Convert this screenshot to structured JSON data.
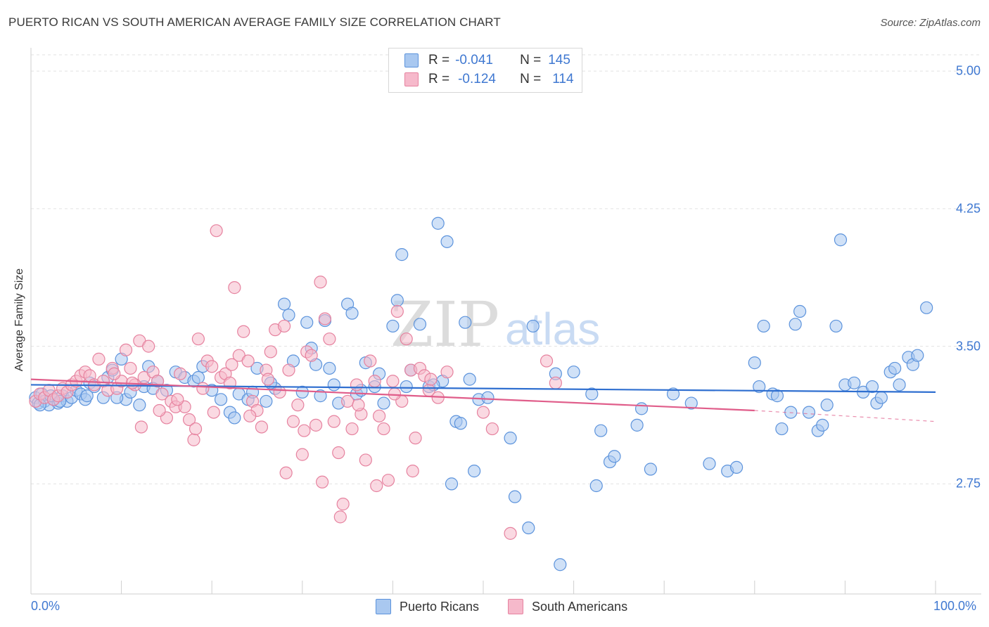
{
  "header": {
    "title": "PUERTO RICAN VS SOUTH AMERICAN AVERAGE FAMILY SIZE CORRELATION CHART",
    "source": "Source: ZipAtlas.com"
  },
  "watermark": {
    "part1": "ZIP",
    "part2": "atlas"
  },
  "colors": {
    "blue_fill": "#a9c8f0",
    "blue_stroke": "#5c93dc",
    "blue_line": "#2f6fd0",
    "pink_fill": "#f6b9cb",
    "pink_stroke": "#e6829f",
    "pink_line": "#e05d8a",
    "accent_text": "#3f78d1"
  },
  "legend": {
    "rows": [
      {
        "r_label": "R =",
        "r_value": "-0.041",
        "n_label": "N =",
        "n_value": "145"
      },
      {
        "r_label": "R =",
        "r_value": "-0.124",
        "n_label": "N =",
        "n_value": "114"
      }
    ]
  },
  "chart_data": {
    "type": "scatter",
    "title": "PUERTO RICAN VS SOUTH AMERICAN AVERAGE FAMILY SIZE CORRELATION CHART",
    "xlabel": "",
    "ylabel": "Average Family Size",
    "xlim": [
      0,
      100
    ],
    "ylim": [
      2.15,
      5.1
    ],
    "x_tick_labels": [
      "0.0%",
      "100.0%"
    ],
    "y_ticks": [
      2.75,
      3.5,
      4.25,
      5.0
    ],
    "y_tick_labels": [
      "2.75",
      "3.50",
      "4.25",
      "5.00"
    ],
    "grid": "horizontal dashed",
    "legend_position": "top-center",
    "series": [
      {
        "name": "Puerto Ricans",
        "r": -0.041,
        "n": 145,
        "trend": {
          "x": [
            0,
            100
          ],
          "y": [
            3.29,
            3.25
          ]
        },
        "points": [
          [
            0.5,
            3.22
          ],
          [
            0.8,
            3.19
          ],
          [
            1.2,
            3.24
          ],
          [
            1.5,
            3.2
          ],
          [
            2,
            3.18
          ],
          [
            2.5,
            3.21
          ],
          [
            3,
            3.19
          ],
          [
            3.5,
            3.23
          ],
          [
            4,
            3.2
          ],
          [
            4.5,
            3.22
          ],
          [
            5,
            3.26
          ],
          [
            5.5,
            3.24
          ],
          [
            6,
            3.21
          ],
          [
            6.5,
            3.3
          ],
          [
            7,
            3.28
          ],
          [
            8,
            3.22
          ],
          [
            8.5,
            3.33
          ],
          [
            9,
            3.37
          ],
          [
            10,
            3.43
          ],
          [
            10.5,
            3.21
          ],
          [
            11,
            3.25
          ],
          [
            12,
            3.18
          ],
          [
            12.5,
            3.28
          ],
          [
            13,
            3.39
          ],
          [
            14,
            3.31
          ],
          [
            15,
            3.26
          ],
          [
            16,
            3.36
          ],
          [
            17,
            3.33
          ],
          [
            18,
            3.31
          ],
          [
            19,
            3.39
          ],
          [
            20,
            3.26
          ],
          [
            21,
            3.21
          ],
          [
            22,
            3.14
          ],
          [
            22.5,
            3.11
          ],
          [
            23,
            3.24
          ],
          [
            24,
            3.21
          ],
          [
            25,
            3.38
          ],
          [
            26,
            3.2
          ],
          [
            27,
            3.27
          ],
          [
            28,
            3.73
          ],
          [
            28.5,
            3.67
          ],
          [
            29,
            3.42
          ],
          [
            30,
            3.25
          ],
          [
            30.5,
            3.63
          ],
          [
            31,
            3.49
          ],
          [
            31.5,
            3.4
          ],
          [
            32,
            3.23
          ],
          [
            32.5,
            3.64
          ],
          [
            33,
            3.38
          ],
          [
            34,
            3.19
          ],
          [
            35,
            3.73
          ],
          [
            35.5,
            3.68
          ],
          [
            36,
            3.24
          ],
          [
            37,
            3.41
          ],
          [
            38,
            3.28
          ],
          [
            38.5,
            3.35
          ],
          [
            39,
            3.19
          ],
          [
            40,
            3.61
          ],
          [
            40.5,
            3.75
          ],
          [
            41,
            4.0
          ],
          [
            41.5,
            3.28
          ],
          [
            43,
            3.62
          ],
          [
            44,
            3.28
          ],
          [
            45,
            4.17
          ],
          [
            45.5,
            3.31
          ],
          [
            46,
            4.07
          ],
          [
            46.5,
            2.75
          ],
          [
            47,
            3.09
          ],
          [
            47.5,
            3.08
          ],
          [
            48,
            3.63
          ],
          [
            48.5,
            3.32
          ],
          [
            49,
            2.82
          ],
          [
            49.5,
            3.21
          ],
          [
            50.5,
            3.22
          ],
          [
            53,
            3.0
          ],
          [
            53.5,
            2.68
          ],
          [
            55,
            2.51
          ],
          [
            55.5,
            3.61
          ],
          [
            58,
            3.35
          ],
          [
            58.5,
            2.31
          ],
          [
            60,
            3.36
          ],
          [
            62,
            3.24
          ],
          [
            62.5,
            2.74
          ],
          [
            63,
            3.04
          ],
          [
            64,
            2.87
          ],
          [
            64.5,
            2.9
          ],
          [
            67,
            3.07
          ],
          [
            67.5,
            3.16
          ],
          [
            68.5,
            2.83
          ],
          [
            71,
            3.24
          ],
          [
            73,
            3.19
          ],
          [
            75,
            2.86
          ],
          [
            77,
            2.82
          ],
          [
            78,
            2.84
          ],
          [
            80,
            3.41
          ],
          [
            80.5,
            3.28
          ],
          [
            81,
            3.61
          ],
          [
            82,
            3.24
          ],
          [
            82.5,
            3.23
          ],
          [
            83,
            3.05
          ],
          [
            84,
            3.14
          ],
          [
            84.5,
            3.62
          ],
          [
            85,
            3.69
          ],
          [
            86,
            3.14
          ],
          [
            87,
            3.04
          ],
          [
            87.5,
            3.07
          ],
          [
            88,
            3.18
          ],
          [
            89,
            3.61
          ],
          [
            89.5,
            4.08
          ],
          [
            90,
            3.29
          ],
          [
            91,
            3.3
          ],
          [
            92,
            3.25
          ],
          [
            93,
            3.28
          ],
          [
            93.5,
            3.19
          ],
          [
            94,
            3.22
          ],
          [
            95,
            3.36
          ],
          [
            95.5,
            3.38
          ],
          [
            96,
            3.29
          ],
          [
            97,
            3.44
          ],
          [
            97.5,
            3.4
          ],
          [
            98,
            3.45
          ],
          [
            99,
            3.71
          ],
          [
            1,
            3.18
          ],
          [
            2.2,
            3.23
          ],
          [
            3.2,
            3.2
          ],
          [
            6.2,
            3.23
          ],
          [
            9.5,
            3.22
          ],
          [
            13.5,
            3.27
          ],
          [
            18.5,
            3.33
          ],
          [
            26.5,
            3.3
          ],
          [
            36.5,
            3.26
          ],
          [
            42,
            3.37
          ],
          [
            44.5,
            3.29
          ],
          [
            33.5,
            3.29
          ],
          [
            24.5,
            3.25
          ]
        ]
      },
      {
        "name": "South Americans",
        "r": -0.124,
        "n": 114,
        "trend": {
          "x": [
            0,
            80
          ],
          "y": [
            3.32,
            3.15
          ]
        },
        "trend_dashed": {
          "x": [
            80,
            100
          ],
          "y": [
            3.15,
            3.09
          ]
        },
        "points": [
          [
            0.5,
            3.2
          ],
          [
            1,
            3.24
          ],
          [
            1.5,
            3.22
          ],
          [
            2,
            3.26
          ],
          [
            2.5,
            3.21
          ],
          [
            3,
            3.23
          ],
          [
            3.5,
            3.27
          ],
          [
            4,
            3.25
          ],
          [
            4.5,
            3.29
          ],
          [
            5,
            3.31
          ],
          [
            5.5,
            3.34
          ],
          [
            6,
            3.36
          ],
          [
            6.5,
            3.34
          ],
          [
            7,
            3.29
          ],
          [
            7.5,
            3.43
          ],
          [
            8,
            3.31
          ],
          [
            8.5,
            3.26
          ],
          [
            9,
            3.38
          ],
          [
            9.5,
            3.27
          ],
          [
            10,
            3.31
          ],
          [
            10.5,
            3.48
          ],
          [
            11,
            3.38
          ],
          [
            11.5,
            3.29
          ],
          [
            12,
            3.53
          ],
          [
            12.5,
            3.33
          ],
          [
            13,
            3.5
          ],
          [
            13.5,
            3.36
          ],
          [
            14,
            3.31
          ],
          [
            14.5,
            3.24
          ],
          [
            15,
            3.11
          ],
          [
            15.5,
            3.2
          ],
          [
            16,
            3.17
          ],
          [
            16.5,
            3.35
          ],
          [
            17,
            3.17
          ],
          [
            17.5,
            3.1
          ],
          [
            18,
            2.99
          ],
          [
            18.5,
            3.54
          ],
          [
            19,
            3.27
          ],
          [
            19.5,
            3.42
          ],
          [
            20,
            3.39
          ],
          [
            20.5,
            4.13
          ],
          [
            21,
            3.33
          ],
          [
            21.5,
            3.35
          ],
          [
            22,
            3.3
          ],
          [
            22.5,
            3.82
          ],
          [
            23,
            3.45
          ],
          [
            23.5,
            3.58
          ],
          [
            24,
            3.42
          ],
          [
            24.5,
            3.2
          ],
          [
            25,
            3.15
          ],
          [
            25.5,
            3.06
          ],
          [
            26,
            3.37
          ],
          [
            26.5,
            3.47
          ],
          [
            27,
            3.59
          ],
          [
            27.5,
            3.25
          ],
          [
            28,
            3.61
          ],
          [
            28.5,
            3.37
          ],
          [
            29,
            3.09
          ],
          [
            29.5,
            3.18
          ],
          [
            30,
            2.91
          ],
          [
            30.5,
            3.47
          ],
          [
            31,
            3.45
          ],
          [
            31.5,
            3.07
          ],
          [
            32,
            3.85
          ],
          [
            32.5,
            3.65
          ],
          [
            33,
            3.54
          ],
          [
            33.5,
            3.09
          ],
          [
            34,
            2.92
          ],
          [
            34.5,
            2.64
          ],
          [
            35,
            3.2
          ],
          [
            35.5,
            3.05
          ],
          [
            36,
            3.29
          ],
          [
            36.5,
            3.13
          ],
          [
            37,
            2.88
          ],
          [
            37.5,
            3.42
          ],
          [
            38,
            3.31
          ],
          [
            38.5,
            3.12
          ],
          [
            39,
            3.05
          ],
          [
            39.5,
            2.77
          ],
          [
            40,
            3.31
          ],
          [
            40.5,
            3.69
          ],
          [
            41,
            3.2
          ],
          [
            41.5,
            3.54
          ],
          [
            42,
            3.37
          ],
          [
            42.5,
            3.0
          ],
          [
            43,
            3.38
          ],
          [
            43.5,
            3.34
          ],
          [
            44,
            3.26
          ],
          [
            45,
            3.22
          ],
          [
            46,
            3.36
          ],
          [
            50,
            3.14
          ],
          [
            51,
            3.05
          ],
          [
            53,
            2.48
          ],
          [
            57,
            3.42
          ],
          [
            58,
            3.3
          ],
          [
            12.2,
            3.06
          ],
          [
            14.2,
            3.15
          ],
          [
            16.2,
            3.21
          ],
          [
            18.2,
            3.05
          ],
          [
            20.2,
            3.14
          ],
          [
            22.2,
            3.4
          ],
          [
            24.2,
            3.12
          ],
          [
            26.2,
            3.32
          ],
          [
            28.2,
            2.81
          ],
          [
            30.2,
            3.04
          ],
          [
            32.2,
            2.76
          ],
          [
            34.2,
            2.57
          ],
          [
            36.2,
            3.18
          ],
          [
            38.2,
            2.74
          ],
          [
            40.2,
            3.24
          ],
          [
            42.2,
            2.82
          ],
          [
            44.2,
            3.32
          ],
          [
            11.2,
            3.3
          ],
          [
            9.2,
            3.35
          ]
        ]
      }
    ]
  },
  "bottom_legend": {
    "series1": "Puerto Ricans",
    "series2": "South Americans"
  }
}
